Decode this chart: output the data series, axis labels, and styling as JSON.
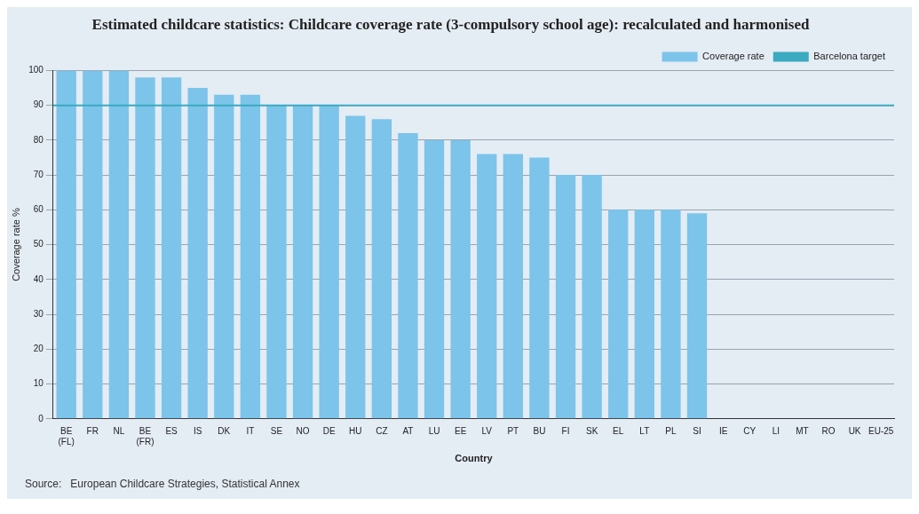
{
  "chart_data": {
    "type": "bar",
    "title": "Estimated childcare statistics: Childcare coverage rate (3-compulsory school age): recalculated and harmonised",
    "xlabel": "Country",
    "ylabel": "Coverage rate %",
    "categories": [
      "BE (FL)",
      "FR",
      "NL",
      "BE (FR)",
      "ES",
      "IS",
      "DK",
      "IT",
      "SE",
      "NO",
      "DE",
      "HU",
      "CZ",
      "AT",
      "LU",
      "EE",
      "LV",
      "PT",
      "BU",
      "FI",
      "SK",
      "EL",
      "LT",
      "PL",
      "SI",
      "IE",
      "CY",
      "LI",
      "MT",
      "RO",
      "UK",
      "EU-25"
    ],
    "series": [
      {
        "name": "Coverage rate",
        "color": "#7cc4ea",
        "values": [
          100,
          100,
          100,
          98,
          98,
          95,
          93,
          93,
          90,
          90,
          90,
          87,
          86,
          82,
          80,
          80,
          76,
          76,
          75,
          70,
          70,
          60,
          60,
          60,
          59,
          null,
          null,
          null,
          null,
          null,
          null,
          null
        ]
      }
    ],
    "ylim": [
      0,
      100
    ],
    "yticks": [
      0,
      10,
      20,
      30,
      40,
      50,
      60,
      70,
      80,
      90,
      100
    ],
    "grid": "y",
    "legend": "top right",
    "ref_lines": [
      {
        "axis": "y",
        "value": 90,
        "label": "Barcelona target",
        "color": "#3aaac0"
      }
    ],
    "annotations": [
      "Source:   European Childcare Strategies, Statistical Annex"
    ]
  }
}
